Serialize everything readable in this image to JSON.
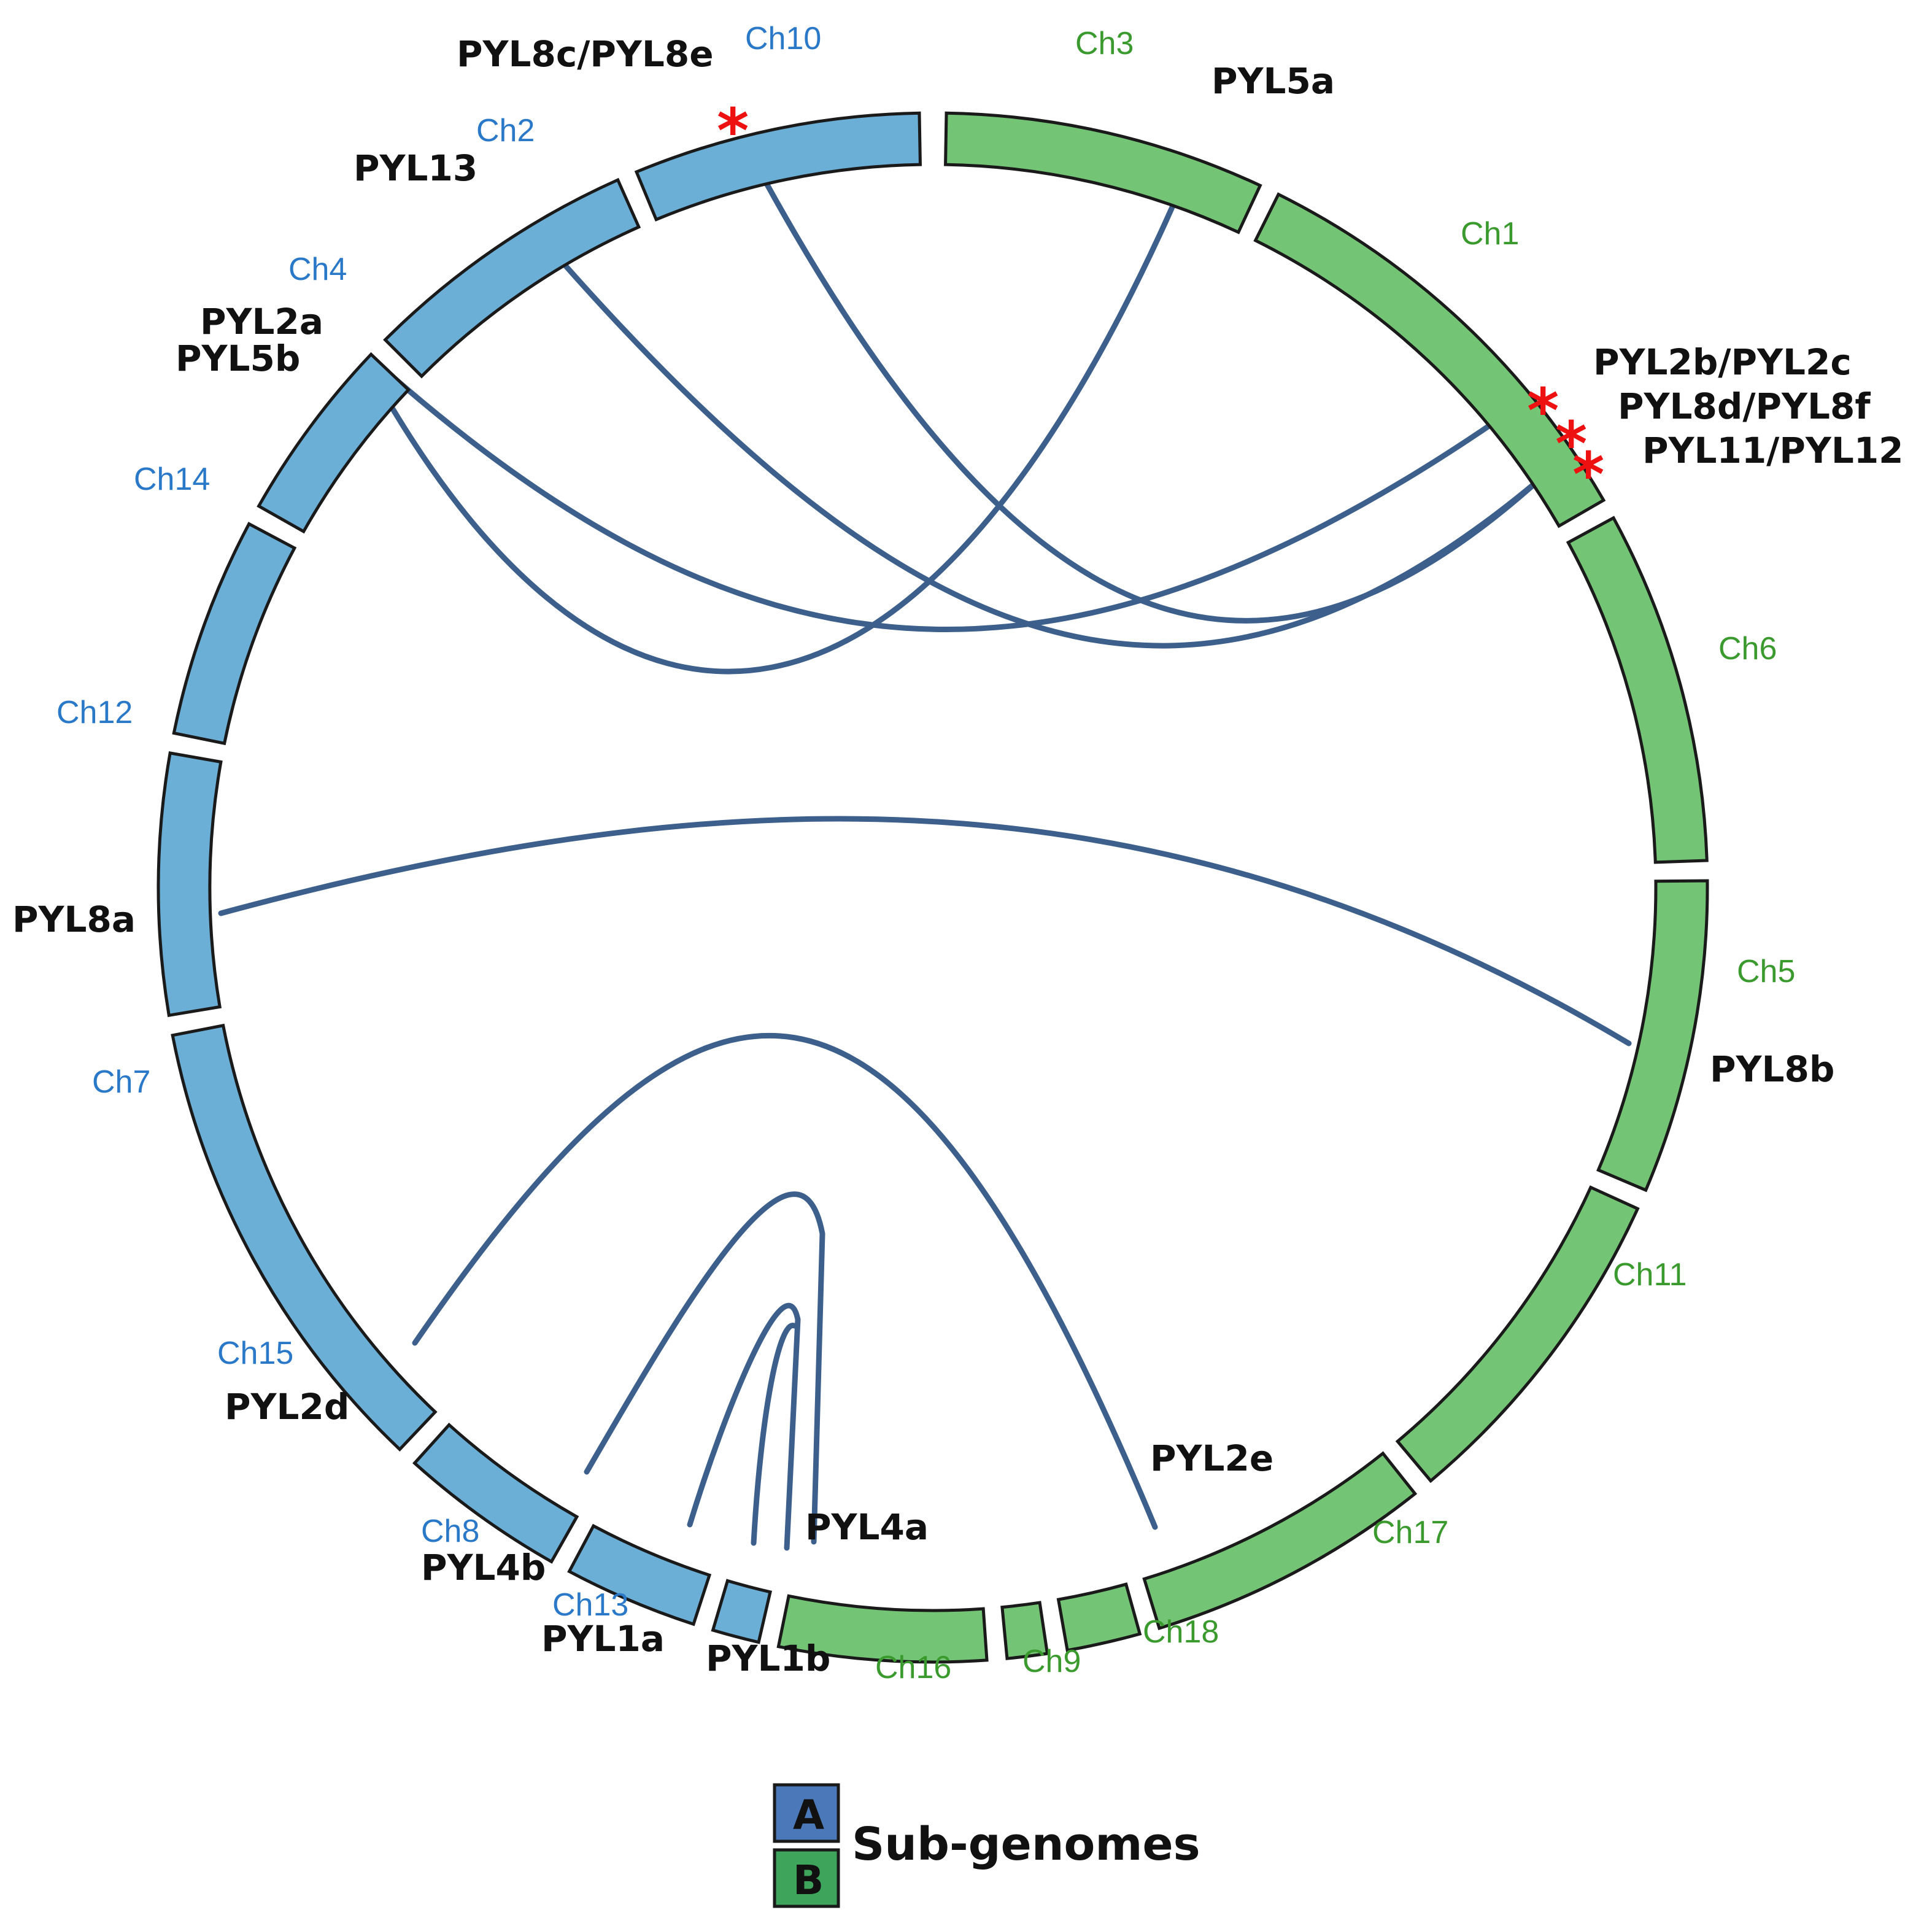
{
  "colors": {
    "subgenome_A": "#6baed6",
    "subgenome_B": "#74c476",
    "link": "#3c5f8c",
    "star": "#ee1111",
    "label_A": "#2a78c8",
    "label_B": "#3a9a2e",
    "legend_A": "#4a78b8",
    "legend_B": "#3ea45c"
  },
  "chromosomes": [
    {
      "name": "Ch3",
      "subgenome": "B"
    },
    {
      "name": "Ch1",
      "subgenome": "B"
    },
    {
      "name": "Ch6",
      "subgenome": "B"
    },
    {
      "name": "Ch5",
      "subgenome": "B"
    },
    {
      "name": "Ch11",
      "subgenome": "B"
    },
    {
      "name": "Ch17",
      "subgenome": "B"
    },
    {
      "name": "Ch18",
      "subgenome": "B"
    },
    {
      "name": "Ch9",
      "subgenome": "B"
    },
    {
      "name": "Ch16",
      "subgenome": "B"
    },
    {
      "name": "Ch13",
      "subgenome": "A"
    },
    {
      "name": "Ch8",
      "subgenome": "A"
    },
    {
      "name": "Ch15",
      "subgenome": "A"
    },
    {
      "name": "Ch7",
      "subgenome": "A"
    },
    {
      "name": "Ch12",
      "subgenome": "A"
    },
    {
      "name": "Ch14",
      "subgenome": "A"
    },
    {
      "name": "Ch4",
      "subgenome": "A"
    },
    {
      "name": "Ch2",
      "subgenome": "A"
    },
    {
      "name": "Ch10",
      "subgenome": "A"
    }
  ],
  "genes": [
    {
      "name": "PYL8c/PYL8e",
      "chromosome": "Ch10"
    },
    {
      "name": "PYL5a",
      "chromosome": "Ch3"
    },
    {
      "name": "PYL13",
      "chromosome": "Ch2"
    },
    {
      "name": "PYL2a",
      "chromosome": "Ch4"
    },
    {
      "name": "PYL5b",
      "chromosome": "Ch4"
    },
    {
      "name": "PYL2b/PYL2c",
      "chromosome": "Ch1"
    },
    {
      "name": "PYL8d/PYL8f",
      "chromosome": "Ch1"
    },
    {
      "name": "PYL11/PYL12",
      "chromosome": "Ch1"
    },
    {
      "name": "PYL8a",
      "chromosome": "Ch7"
    },
    {
      "name": "PYL8b",
      "chromosome": "Ch5"
    },
    {
      "name": "PYL2d",
      "chromosome": "Ch15"
    },
    {
      "name": "PYL2e",
      "chromosome": "Ch18"
    },
    {
      "name": "PYL4a",
      "chromosome": "Ch16"
    },
    {
      "name": "PYL4b",
      "chromosome": "Ch8"
    },
    {
      "name": "PYL1a",
      "chromosome": "Ch13"
    },
    {
      "name": "PYL1b",
      "chromosome": "Ch16"
    }
  ],
  "tandem_marker": "*",
  "legend": {
    "title": "Sub-genomes",
    "items": [
      {
        "label": "A"
      },
      {
        "label": "B"
      }
    ]
  }
}
